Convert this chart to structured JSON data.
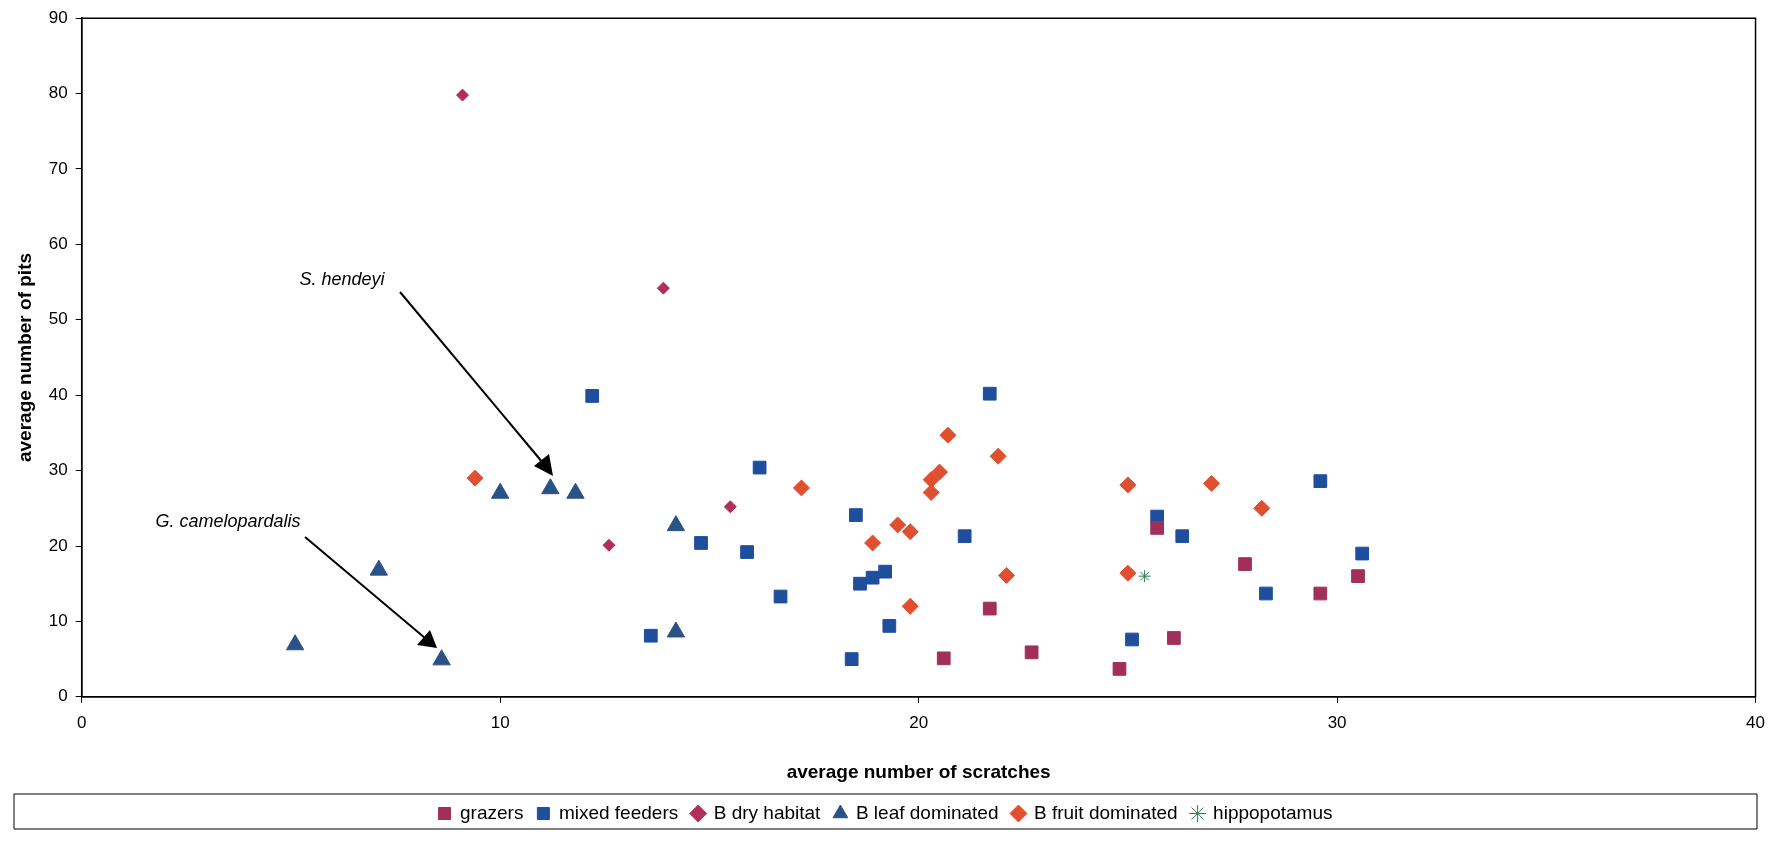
{
  "chart_data": {
    "type": "scatter",
    "xlabel": "average number of scratches",
    "ylabel": "average number of pits",
    "xlim": [
      0,
      40
    ],
    "xticks": [
      0,
      10,
      20,
      30,
      40
    ],
    "ylim": [
      0,
      90
    ],
    "yticks": [
      0,
      10,
      20,
      30,
      40,
      50,
      60,
      70,
      80,
      90
    ],
    "grid": false,
    "legend": "bottom",
    "annotations": [
      "S. hendeyi",
      "G. camelopardalis"
    ],
    "series": [
      {
        "name": "grazers",
        "color": "#a0305a",
        "marker": "square",
        "x": [
          21.7,
          20.6,
          22.7,
          24.8,
          25.7,
          26.1,
          27.8,
          29.6,
          30.5
        ],
        "values": [
          11.7,
          5.1,
          5.9,
          3.7,
          22.4,
          7.8,
          17.6,
          13.7,
          16.0
        ]
      },
      {
        "name": "mixed feeders",
        "color": "#1f4e9c",
        "marker": "square",
        "x": [
          12.2,
          13.6,
          16.2,
          14.8,
          15.9,
          16.7,
          18.5,
          18.6,
          18.9,
          19.2,
          18.4,
          19.3,
          21.7,
          21.1,
          25.1,
          25.7,
          26.3,
          29.6,
          28.3,
          30.6
        ],
        "values": [
          39.9,
          8.1,
          30.4,
          20.4,
          19.2,
          13.3,
          24.1,
          15.0,
          15.8,
          16.6,
          5.0,
          9.4,
          40.2,
          21.3,
          7.6,
          23.9,
          21.3,
          28.6,
          13.7,
          19.0
        ]
      },
      {
        "name": "B dry habitat",
        "color": "#b0305a",
        "marker": "diamond",
        "x": [
          9.1,
          12.6,
          13.9,
          15.5
        ],
        "values": [
          79.8,
          20.1,
          54.2,
          25.2
        ]
      },
      {
        "name": "B leaf dominated",
        "color": "#2a5288",
        "marker": "triangle",
        "x": [
          10.0,
          11.8,
          7.1,
          5.1,
          8.6,
          14.2,
          14.2
        ],
        "values": [
          27.0,
          27.0,
          16.8,
          6.9,
          4.9,
          22.7,
          8.6
        ]
      },
      {
        "name": "B fruit dominated",
        "color": "#e05030",
        "marker": "diamond",
        "x": [
          9.4,
          17.2,
          18.9,
          19.5,
          19.8,
          19.8,
          20.7,
          20.5,
          20.3,
          20.3,
          21.9,
          22.1,
          25.0,
          25.0,
          27.0,
          28.2
        ],
        "values": [
          29.0,
          27.7,
          20.4,
          22.8,
          21.9,
          12.0,
          34.7,
          29.8,
          28.8,
          27.1,
          31.9,
          16.1,
          28.1,
          16.4,
          28.3,
          25.0
        ]
      },
      {
        "name": "hippopotamus",
        "color": "#2e7d4f",
        "marker": "cross",
        "x": [
          25.4
        ],
        "values": [
          16.0
        ]
      },
      {
        "color": "#2a5288",
        "marker": "triangle",
        "x": [
          11.2
        ],
        "values": [
          27.6
        ]
      }
    ]
  }
}
